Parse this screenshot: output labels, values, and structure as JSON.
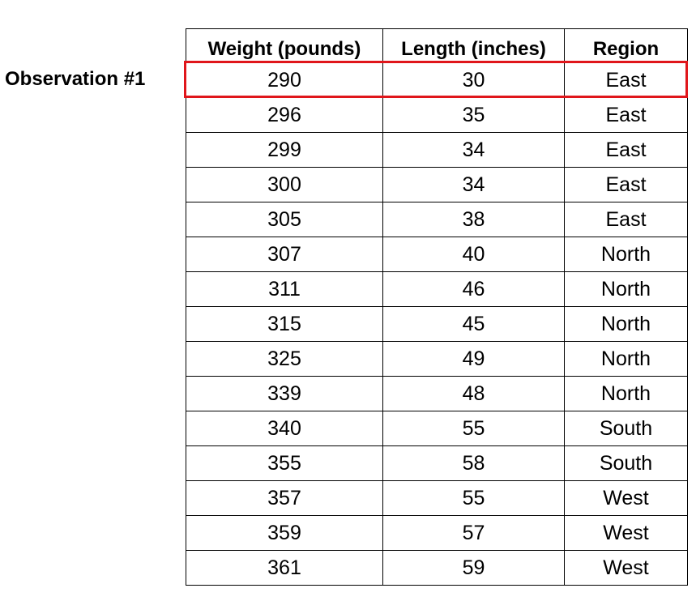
{
  "annotation": {
    "label": "Observation #1"
  },
  "table": {
    "header": [
      "Weight (pounds)",
      "Length (inches)",
      "Region"
    ],
    "rows": [
      [
        290,
        30,
        "East"
      ],
      [
        296,
        35,
        "East"
      ],
      [
        299,
        34,
        "East"
      ],
      [
        300,
        34,
        "East"
      ],
      [
        305,
        38,
        "East"
      ],
      [
        307,
        40,
        "North"
      ],
      [
        311,
        46,
        "North"
      ],
      [
        315,
        45,
        "North"
      ],
      [
        325,
        49,
        "North"
      ],
      [
        339,
        48,
        "North"
      ],
      [
        340,
        55,
        "South"
      ],
      [
        355,
        58,
        "South"
      ],
      [
        357,
        55,
        "West"
      ],
      [
        359,
        57,
        "West"
      ],
      [
        361,
        59,
        "West"
      ]
    ]
  }
}
